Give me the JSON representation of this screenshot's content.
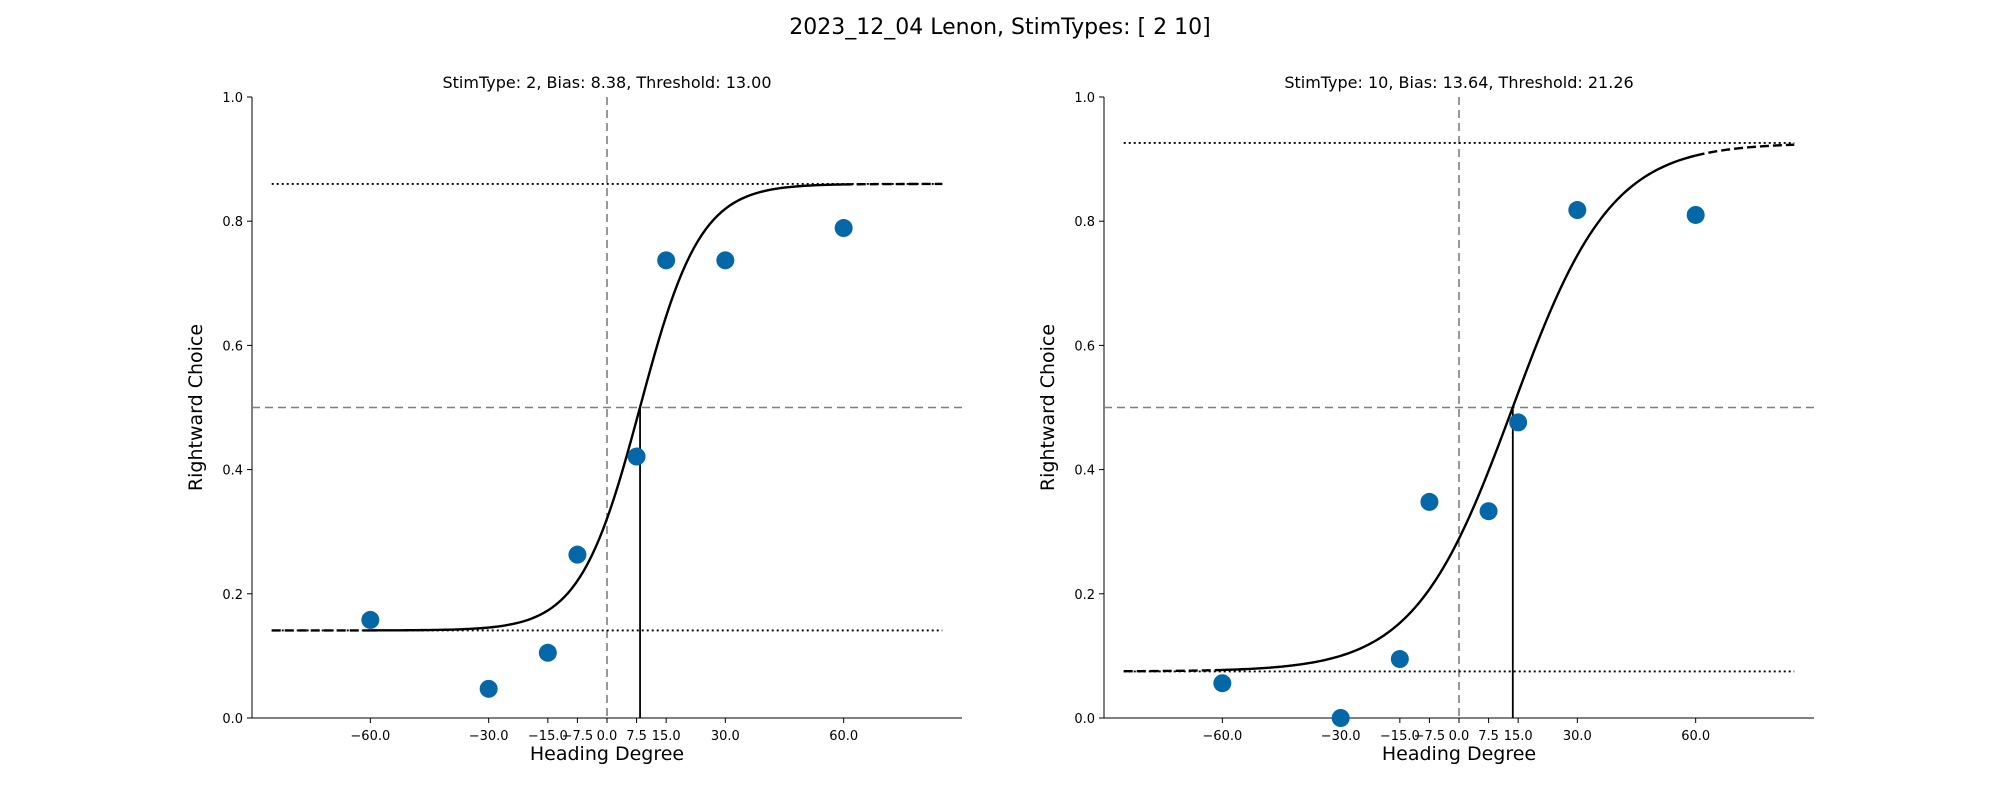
{
  "figure_title": "2023_12_04 Lenon, StimTypes: [ 2 10]",
  "colors": {
    "points": "#0467a8",
    "curve": "#000000",
    "reference": "#7f7f7f"
  },
  "chart_data": [
    {
      "type": "scatter",
      "title": "StimType: 2, Bias: 8.38, Threshold: 13.00",
      "xlabel": "Heading Degree",
      "ylabel": "Rightward Choice",
      "xlim": [
        -90,
        90
      ],
      "ylim": [
        0,
        1
      ],
      "xticks": [
        -60,
        -30,
        -15,
        -7.5,
        0,
        7.5,
        15,
        30,
        60
      ],
      "xtick_labels": [
        "−60.0",
        "−30.0",
        "−15.0",
        "−7.5",
        "0.0",
        "7.5",
        "15.0",
        "30.0",
        "60.0"
      ],
      "yticks": [
        0,
        0.2,
        0.4,
        0.6,
        0.8,
        1.0
      ],
      "ytick_labels": [
        "0.0",
        "0.2",
        "0.4",
        "0.6",
        "0.8",
        "1.0"
      ],
      "points": {
        "x": [
          -60,
          -30,
          -15,
          -7.5,
          7.5,
          15,
          30,
          60
        ],
        "y": [
          0.158,
          0.047,
          0.105,
          0.263,
          0.421,
          0.737,
          0.737,
          0.789
        ]
      },
      "fit": {
        "bias": 8.38,
        "threshold": 13.0,
        "lower": 0.141,
        "upper": 0.86,
        "x_range": [
          -85,
          85
        ],
        "solid_range": [
          -60,
          60
        ]
      },
      "reference_lines": {
        "vertical_x": 0,
        "horizontal_y": 0.5
      },
      "grid": false
    },
    {
      "type": "scatter",
      "title": "StimType: 10, Bias: 13.64, Threshold: 21.26",
      "xlabel": "Heading Degree",
      "ylabel": "Rightward Choice",
      "xlim": [
        -90,
        90
      ],
      "ylim": [
        0,
        1
      ],
      "xticks": [
        -60,
        -30,
        -15,
        -7.5,
        0,
        7.5,
        15,
        30,
        60
      ],
      "xtick_labels": [
        "−60.0",
        "−30.0",
        "−15.0",
        "−7.5",
        "0.0",
        "7.5",
        "15.0",
        "30.0",
        "60.0"
      ],
      "yticks": [
        0,
        0.2,
        0.4,
        0.6,
        0.8,
        1.0
      ],
      "ytick_labels": [
        "0.0",
        "0.2",
        "0.4",
        "0.6",
        "0.8",
        "1.0"
      ],
      "points": {
        "x": [
          -60,
          -30,
          -15,
          -7.5,
          7.5,
          15,
          30,
          60
        ],
        "y": [
          0.056,
          0.0,
          0.095,
          0.348,
          0.333,
          0.476,
          0.818,
          0.81
        ]
      },
      "fit": {
        "bias": 13.64,
        "threshold": 21.26,
        "lower": 0.075,
        "upper": 0.926,
        "x_range": [
          -85,
          85
        ],
        "solid_range": [
          -60,
          60
        ]
      },
      "reference_lines": {
        "vertical_x": 0,
        "horizontal_y": 0.5
      },
      "grid": false
    }
  ]
}
